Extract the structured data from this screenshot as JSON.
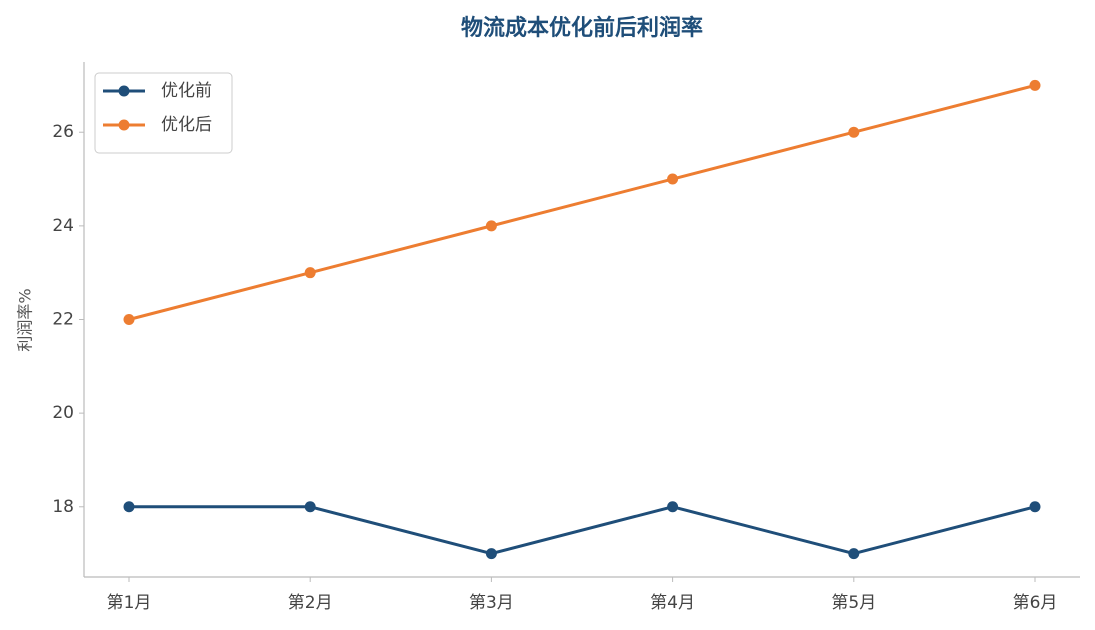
{
  "chart_data": {
    "type": "line",
    "title": "物流成本优化前后利润率",
    "y_label": "利润率%",
    "categories": [
      "第1月",
      "第2月",
      "第3月",
      "第4月",
      "第5月",
      "第6月"
    ],
    "series": [
      {
        "name": "优化前",
        "color": "#1f4e79",
        "values": [
          18,
          18,
          17,
          18,
          17,
          18
        ]
      },
      {
        "name": "优化后",
        "color": "#ed7d31",
        "values": [
          22,
          23,
          24,
          25,
          26,
          27
        ]
      }
    ],
    "ylim": [
      16.5,
      27.5
    ],
    "yticks": [
      18,
      20,
      22,
      24,
      26
    ],
    "grid": false,
    "legend": "upper-left"
  }
}
